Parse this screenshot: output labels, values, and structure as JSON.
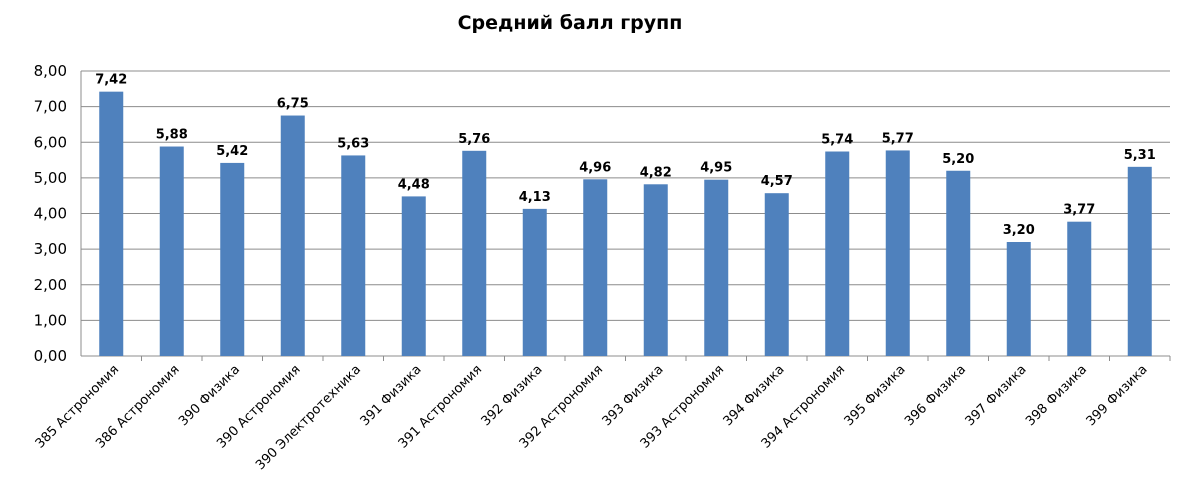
{
  "chart_data": {
    "type": "bar",
    "title": "Средний балл групп",
    "xlabel": "",
    "ylabel": "",
    "ylim": [
      0,
      8
    ],
    "y_ticks": [
      "0,00",
      "1,00",
      "2,00",
      "3,00",
      "4,00",
      "5,00",
      "6,00",
      "7,00",
      "8,00"
    ],
    "grid": true,
    "legend": "none",
    "bar_color": "#4f81bd",
    "categories": [
      "385 Астрономия",
      "386 Астрономия",
      "390 Физика",
      "390 Астрономия",
      "390 Электротехника",
      "391 Физика",
      "391 Астрономия",
      "392 Физика",
      "392 Астрономия",
      "393 Физика",
      "393 Астрономия",
      "394 Физика",
      "394 Астрономия",
      "395 Физика",
      "396 Физика",
      "397 Физика",
      "398 Физика",
      "399 Физика"
    ],
    "values": [
      7.42,
      5.88,
      5.42,
      6.75,
      5.63,
      4.48,
      5.76,
      4.13,
      4.96,
      4.82,
      4.95,
      4.57,
      5.74,
      5.77,
      5.2,
      3.2,
      3.77,
      5.31
    ],
    "data_labels": [
      "7,42",
      "5,88",
      "5,42",
      "6,75",
      "5,63",
      "4,48",
      "5,76",
      "4,13",
      "4,96",
      "4,82",
      "4,95",
      "4,57",
      "5,74",
      "5,77",
      "5,20",
      "3,20",
      "3,77",
      "5,31"
    ]
  }
}
